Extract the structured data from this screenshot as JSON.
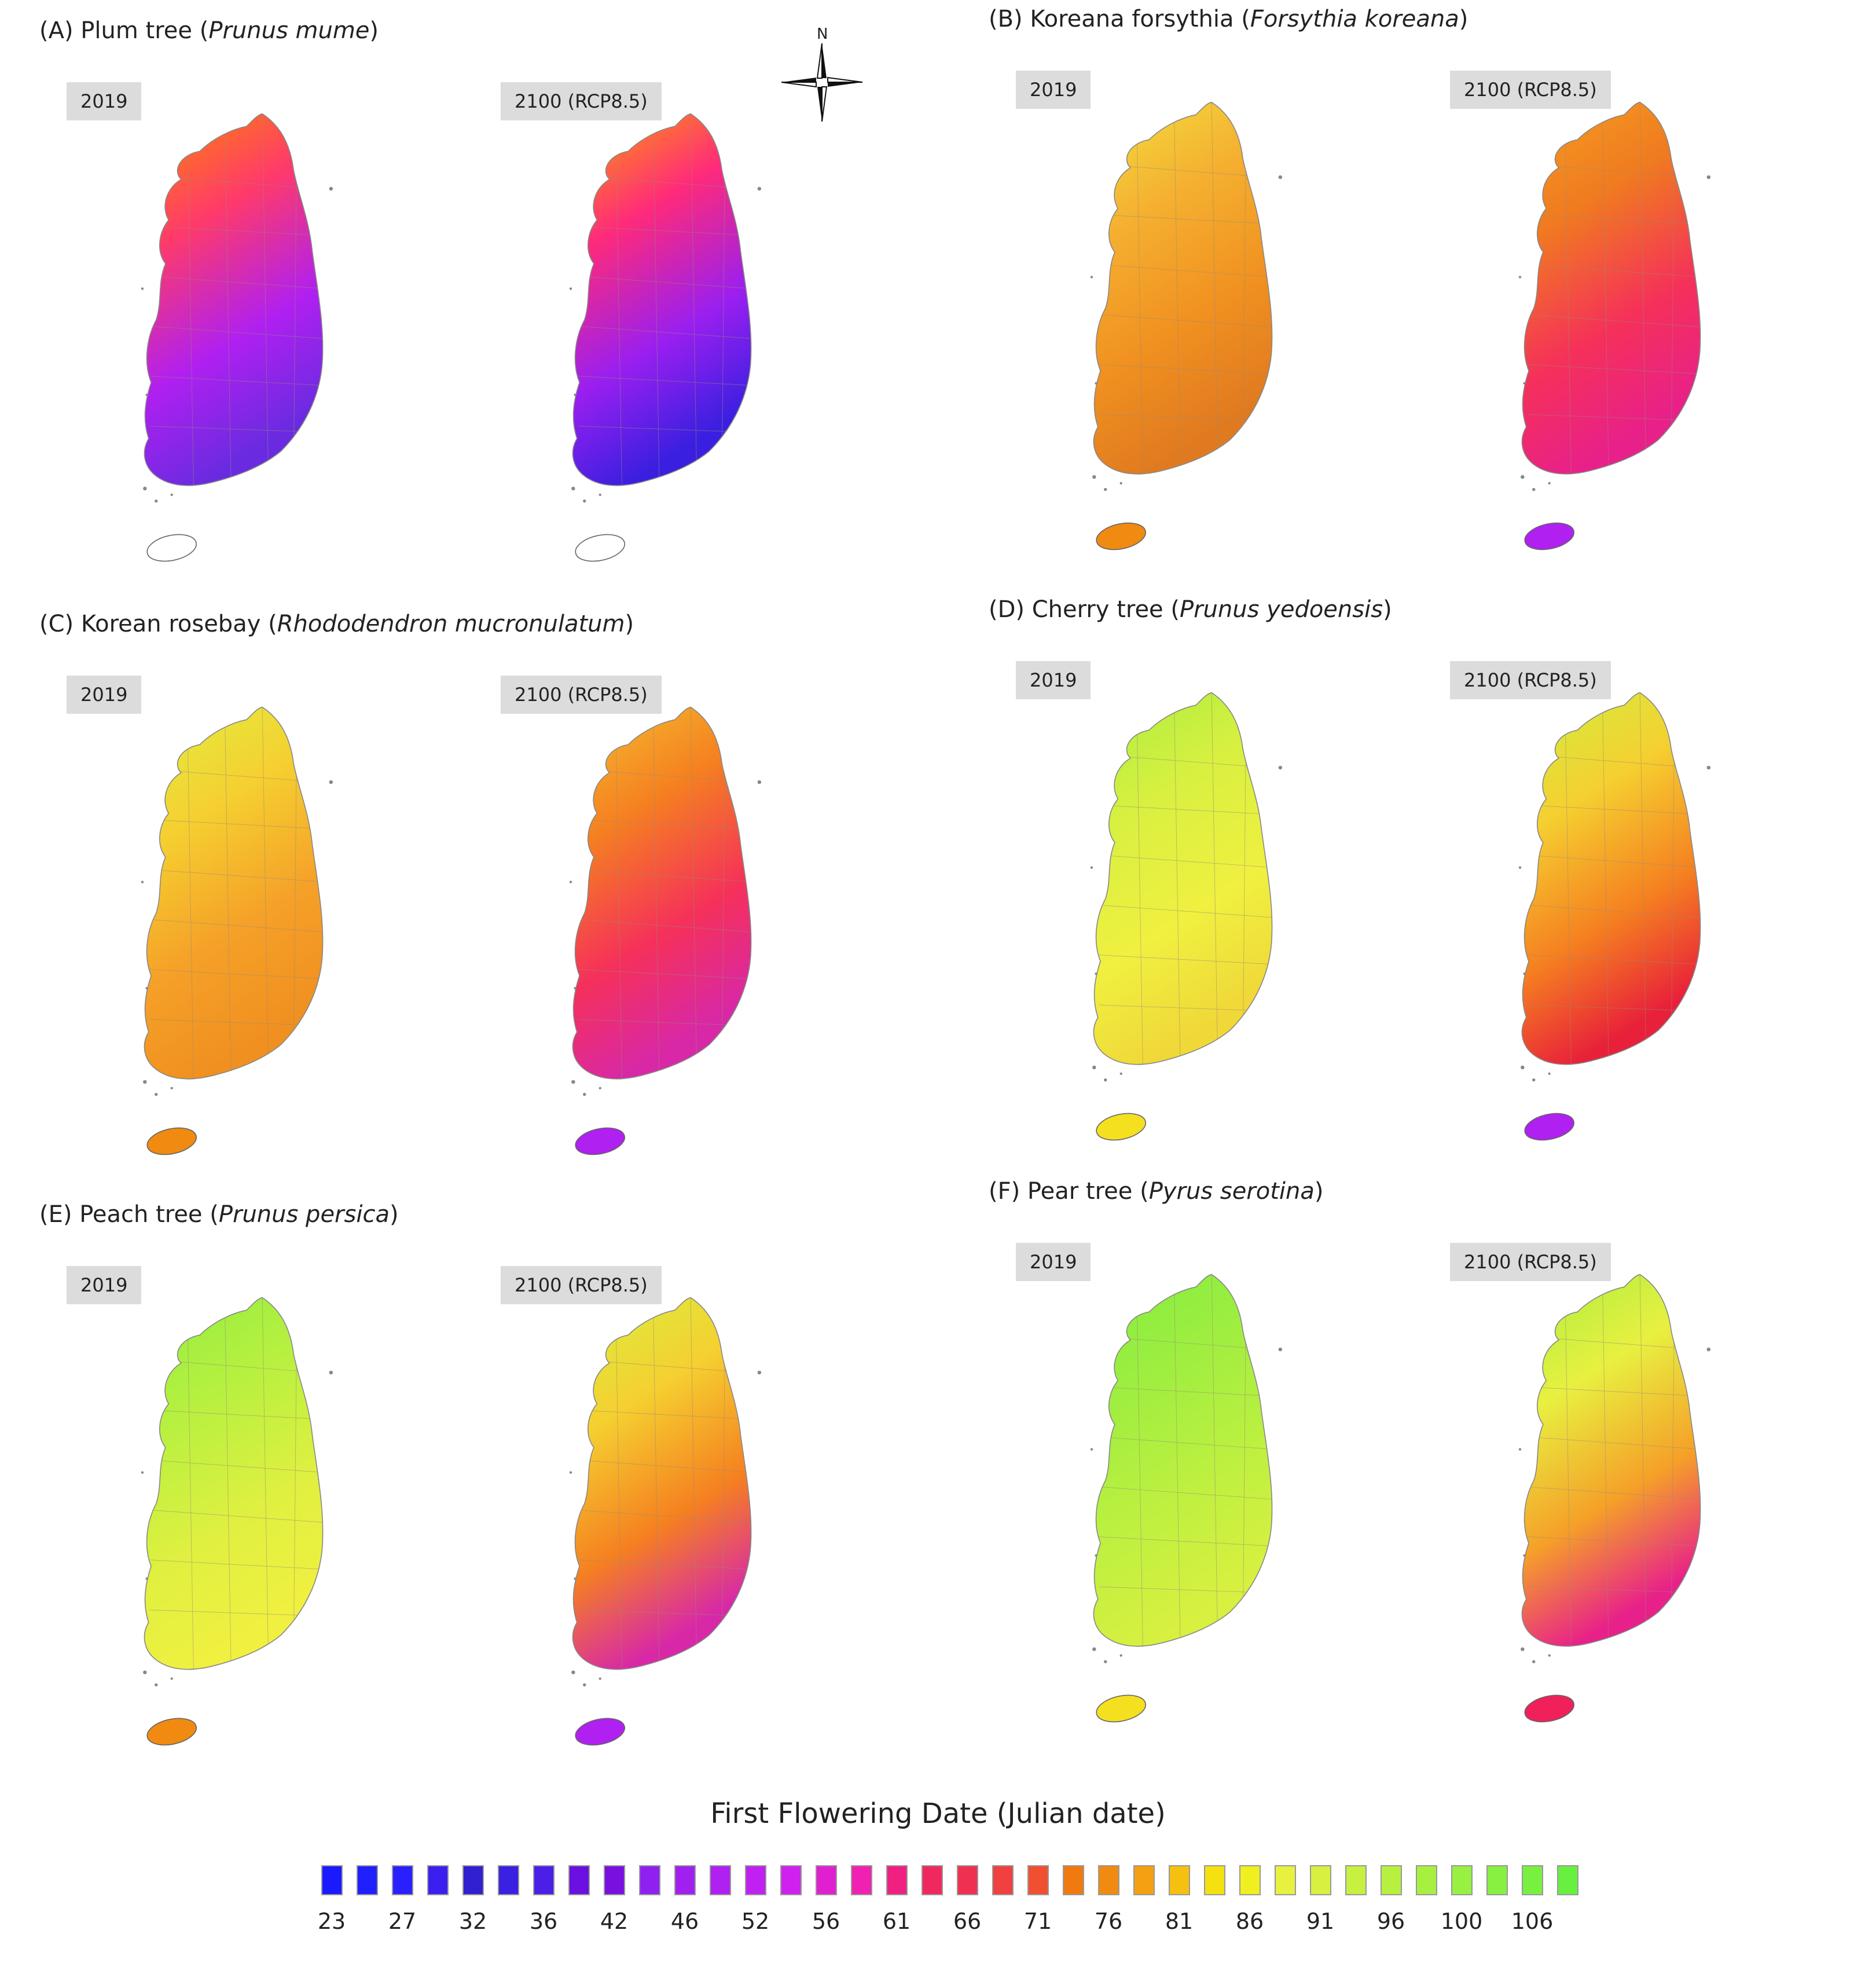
{
  "panels": [
    {
      "id": "A",
      "prefix": "(A) Plum tree (",
      "species": "Prunus mume",
      "suffix": ")",
      "year_left": "2019",
      "year_right": "2100 (RCP8.5)",
      "left_colors": [
        "#ff8a00",
        "#ff3a6a",
        "#b020f0",
        "#6a2be0"
      ],
      "right_colors": [
        "#ffa500",
        "#ff2a7a",
        "#9a1ff0",
        "#3a1fe0"
      ],
      "jeju_left": "#ffffff",
      "jeju_right": "#ffffff"
    },
    {
      "id": "B",
      "prefix": "(B) Koreana forsythia (",
      "species": "Forsythia koreana",
      "suffix": ")",
      "year_left": "2019",
      "year_right": "2100 (RCP8.5)",
      "left_colors": [
        "#f2e040",
        "#f5b030",
        "#f09020",
        "#e07a20"
      ],
      "right_colors": [
        "#f4a020",
        "#f07a20",
        "#f5305a",
        "#e8208a"
      ],
      "jeju_left": "#f08a10",
      "jeju_right": "#b020f0"
    },
    {
      "id": "C",
      "prefix": "(C) Korean rosebay (",
      "species": "Rhododendron mucronulatum",
      "suffix": ")",
      "year_left": "2019",
      "year_right": "2100 (RCP8.5)",
      "left_colors": [
        "#e2f040",
        "#f5d030",
        "#f5a028",
        "#f09020"
      ],
      "right_colors": [
        "#f5c030",
        "#f58020",
        "#f5305a",
        "#d828a8"
      ],
      "jeju_left": "#f08a10",
      "jeju_right": "#b020f0"
    },
    {
      "id": "D",
      "prefix": "(D) Cherry tree (",
      "species": "Prunus yedoensis",
      "suffix": ")",
      "year_left": "2019",
      "year_right": "2100 (RCP8.5)",
      "left_colors": [
        "#a8ee40",
        "#d8f040",
        "#f0f040",
        "#f0d838"
      ],
      "right_colors": [
        "#d0f040",
        "#f5d030",
        "#f58020",
        "#e8203a"
      ],
      "jeju_left": "#f5e020",
      "jeju_right": "#b020f0"
    },
    {
      "id": "E",
      "prefix": "(E) Peach tree (",
      "species": "Prunus persica",
      "suffix": ")",
      "year_left": "2019",
      "year_right": "2100 (RCP8.5)",
      "left_colors": [
        "#90ee40",
        "#b8f040",
        "#e0f040",
        "#f0f040"
      ],
      "right_colors": [
        "#d8f040",
        "#f5d030",
        "#f58020",
        "#d828a8"
      ],
      "jeju_left": "#f08a10",
      "jeju_right": "#b020f0"
    },
    {
      "id": "F",
      "prefix": "(F) Pear tree (",
      "species": "Pyrus serotina",
      "suffix": ")",
      "year_left": "2019",
      "year_right": "2100 (RCP8.5)",
      "left_colors": [
        "#80ee40",
        "#a0ee40",
        "#c0f040",
        "#d8f040"
      ],
      "right_colors": [
        "#a8ee40",
        "#e8f040",
        "#f5a028",
        "#e8208a"
      ],
      "jeju_left": "#f5e020",
      "jeju_right": "#f0205a"
    }
  ],
  "compass": {
    "label": "N"
  },
  "legend": {
    "title": "First Flowering Date (Julian date)",
    "colors": [
      "#1a1aff",
      "#2020ff",
      "#2a20ff",
      "#3a20f0",
      "#3020d0",
      "#3a20e0",
      "#4a20e8",
      "#6a10e0",
      "#7a10e0",
      "#9020f0",
      "#a020f0",
      "#b020f0",
      "#c020f0",
      "#d020f0",
      "#e020d0",
      "#f020b0",
      "#f02080",
      "#f02860",
      "#f03050",
      "#f04040",
      "#f05030",
      "#f07a10",
      "#f08a10",
      "#f5a010",
      "#f5c010",
      "#f5e010",
      "#f0f020",
      "#e8f040",
      "#d8f040",
      "#c8f040",
      "#b8f040",
      "#a8f040",
      "#98f040",
      "#88f040",
      "#78f040",
      "#68f040"
    ],
    "ticks": [
      "23",
      "27",
      "32",
      "36",
      "42",
      "46",
      "52",
      "56",
      "61",
      "66",
      "71",
      "76",
      "81",
      "86",
      "91",
      "96",
      "100",
      "106"
    ]
  }
}
